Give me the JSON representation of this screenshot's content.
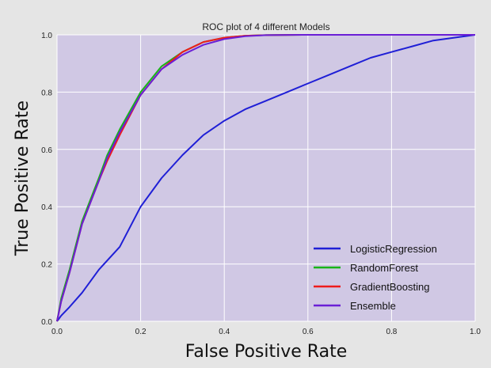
{
  "chart_data": {
    "type": "line",
    "title": "ROC plot of 4 different Models",
    "xlabel": "False Positive Rate",
    "ylabel": "True Positive Rate",
    "xlim": [
      0,
      1
    ],
    "ylim": [
      0,
      1
    ],
    "grid": true,
    "legend_position": "bottom-right",
    "background_color": "#d0c8e4",
    "xticks": [
      "0.0",
      "0.2",
      "0.4",
      "0.6",
      "0.8",
      "1.0"
    ],
    "yticks": [
      "0.0",
      "0.2",
      "0.4",
      "0.6",
      "0.8",
      "1.0"
    ],
    "series": [
      {
        "name": "LogisticRegression",
        "color": "#1f1fd6",
        "x": [
          0,
          0.01,
          0.03,
          0.06,
          0.1,
          0.15,
          0.2,
          0.25,
          0.3,
          0.35,
          0.4,
          0.45,
          0.5,
          0.55,
          0.6,
          0.65,
          0.7,
          0.75,
          0.8,
          0.85,
          0.9,
          0.95,
          1.0
        ],
        "y": [
          0,
          0.02,
          0.05,
          0.1,
          0.18,
          0.26,
          0.4,
          0.5,
          0.58,
          0.65,
          0.7,
          0.74,
          0.77,
          0.8,
          0.83,
          0.86,
          0.89,
          0.92,
          0.94,
          0.96,
          0.98,
          0.99,
          1.0
        ]
      },
      {
        "name": "RandomForest",
        "color": "#18b418",
        "x": [
          0,
          0.01,
          0.03,
          0.06,
          0.1,
          0.12,
          0.15,
          0.2,
          0.25,
          0.3,
          0.35,
          0.4,
          0.45,
          0.5,
          0.6,
          0.8,
          1.0
        ],
        "y": [
          0,
          0.08,
          0.18,
          0.35,
          0.5,
          0.58,
          0.67,
          0.8,
          0.89,
          0.94,
          0.975,
          0.99,
          0.997,
          0.999,
          1.0,
          1.0,
          1.0
        ]
      },
      {
        "name": "GradientBoosting",
        "color": "#ee1c1c",
        "x": [
          0,
          0.01,
          0.03,
          0.06,
          0.1,
          0.12,
          0.15,
          0.2,
          0.25,
          0.3,
          0.35,
          0.4,
          0.45,
          0.5,
          0.6,
          0.8,
          1.0
        ],
        "y": [
          0,
          0.07,
          0.17,
          0.34,
          0.49,
          0.56,
          0.65,
          0.79,
          0.88,
          0.94,
          0.975,
          0.99,
          0.997,
          0.999,
          1.0,
          1.0,
          1.0
        ]
      },
      {
        "name": "Ensemble",
        "color": "#6a1fd6",
        "x": [
          0,
          0.01,
          0.03,
          0.06,
          0.1,
          0.12,
          0.15,
          0.2,
          0.25,
          0.3,
          0.35,
          0.4,
          0.45,
          0.5,
          0.6,
          0.8,
          1.0
        ],
        "y": [
          0,
          0.07,
          0.17,
          0.34,
          0.49,
          0.57,
          0.66,
          0.79,
          0.88,
          0.93,
          0.965,
          0.985,
          0.995,
          0.999,
          1.0,
          1.0,
          1.0
        ]
      }
    ]
  }
}
